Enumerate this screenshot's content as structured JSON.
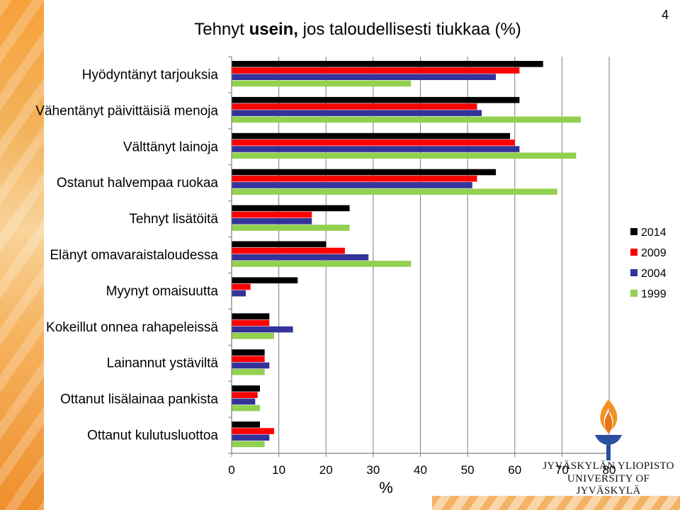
{
  "page": {
    "title_strong": "usein,",
    "title_pre": "Tehnyt ",
    "title_post": " jos taloudellisesti tiukkaa (%)",
    "page_number": "4"
  },
  "logo": {
    "line1": "JYVÄSKYLÄN YLIOPISTO",
    "line2": "UNIVERSITY OF JYVÄSKYLÄ"
  },
  "colors": {
    "2014": "#000000",
    "2009": "#ff0000",
    "2004": "#333399",
    "1999": "#92d050",
    "axis": "#7f7f7f",
    "grid": "#7f7f7f",
    "brand_orange": "#f39224"
  },
  "chart_data": {
    "type": "bar",
    "orientation": "horizontal",
    "title": "Tehnyt usein, jos taloudellisesti tiukkaa (%)",
    "xlabel": "%",
    "xlim": [
      0,
      80
    ],
    "xticks": [
      "0",
      "10",
      "20",
      "30",
      "40",
      "50",
      "60",
      "70",
      "80"
    ],
    "grid": "vertical",
    "legend_position": "right",
    "categories": [
      "Hyödyntänyt tarjouksia",
      "Vähentänyt päivittäisiä menoja",
      "Välttänyt lainoja",
      "Ostanut halvempaa ruokaa",
      "Tehnyt lisätöitä",
      "Elänyt omavaraistaloudessa",
      "Myynyt omaisuutta",
      "Kokeillut onnea rahapeleissä",
      "Lainannut ystäviltä",
      "Ottanut lisälainaa pankista",
      "Ottanut kulutusluottoa"
    ],
    "series": [
      {
        "name": "2014",
        "values": [
          66,
          61,
          59,
          56,
          25,
          20,
          14,
          8,
          7,
          6,
          6
        ]
      },
      {
        "name": "2009",
        "values": [
          61,
          52,
          60,
          52,
          17,
          24,
          4,
          8,
          7,
          5.5,
          9
        ]
      },
      {
        "name": "2004",
        "values": [
          56,
          53,
          61,
          51,
          17,
          29,
          3,
          13,
          8,
          5,
          8
        ]
      },
      {
        "name": "1999",
        "values": [
          38,
          74,
          73,
          69,
          25,
          38,
          null,
          9,
          7,
          6,
          7
        ]
      }
    ]
  }
}
